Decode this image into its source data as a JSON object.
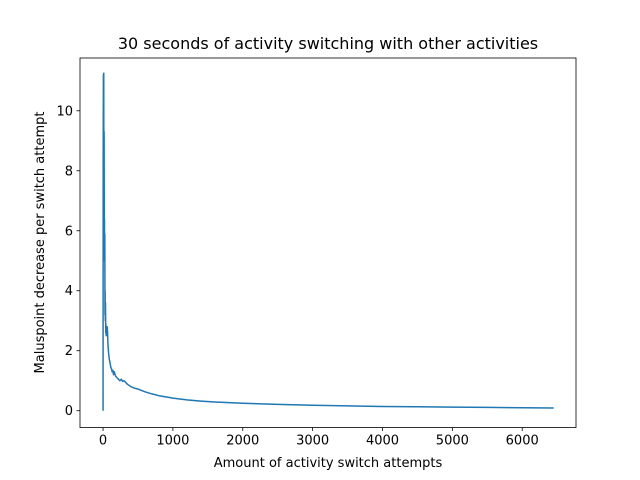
{
  "chart_data": {
    "type": "line",
    "title": "30 seconds of activity switching with other activities",
    "xlabel": "Amount of activity switch attempts",
    "ylabel": "Maluspoint decrease per switch attempt",
    "xlim": [
      -330,
      6770
    ],
    "ylim": [
      -0.56,
      11.76
    ],
    "xticks": [
      0,
      1000,
      2000,
      3000,
      4000,
      5000,
      6000
    ],
    "yticks": [
      0,
      2,
      4,
      6,
      8,
      10
    ],
    "grid": false,
    "series_color": "#1f77b4",
    "series": [
      {
        "x": [
          0,
          2,
          5,
          8,
          10,
          12,
          15,
          18,
          20,
          22,
          25,
          28,
          30,
          32,
          35,
          38,
          40,
          45,
          50,
          55,
          60,
          65,
          70,
          80,
          90,
          100,
          110,
          120,
          130,
          140,
          150,
          160,
          180,
          200,
          220,
          240,
          260,
          280,
          300,
          350,
          400,
          450,
          500,
          600,
          700,
          800,
          900,
          1000,
          1200,
          1400,
          1600,
          1800,
          2000,
          2500,
          3000,
          3500,
          4000,
          4500,
          5000,
          5500,
          6000,
          6450
        ],
        "y": [
          0,
          8.5,
          11.2,
          10.0,
          11.25,
          7.0,
          9.3,
          5.8,
          6.4,
          5.0,
          5.9,
          3.2,
          4.0,
          3.0,
          3.6,
          2.6,
          2.9,
          2.5,
          2.8,
          2.7,
          2.8,
          2.6,
          2.2,
          1.9,
          1.7,
          1.6,
          1.45,
          1.4,
          1.3,
          1.35,
          1.2,
          1.3,
          1.15,
          1.1,
          1.05,
          1.0,
          1.05,
          0.98,
          1.0,
          0.88,
          0.8,
          0.75,
          0.72,
          0.63,
          0.56,
          0.5,
          0.46,
          0.42,
          0.36,
          0.32,
          0.29,
          0.27,
          0.25,
          0.21,
          0.18,
          0.16,
          0.14,
          0.13,
          0.12,
          0.11,
          0.1,
          0.09
        ]
      }
    ]
  }
}
